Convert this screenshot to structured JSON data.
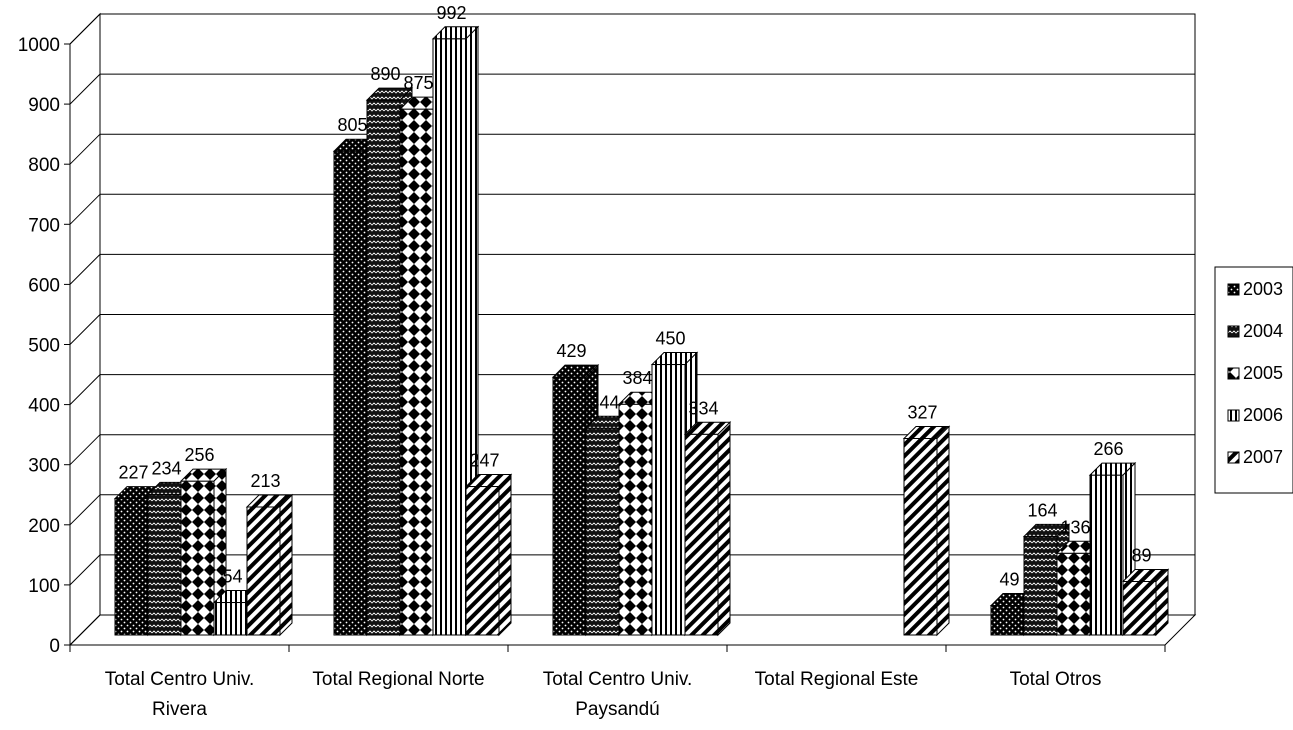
{
  "chart_data": {
    "type": "bar",
    "categories": [
      [
        "Total Centro Univ.",
        "Rivera"
      ],
      [
        "Total Regional Norte"
      ],
      [
        "Total Centro Univ.",
        "Paysandú"
      ],
      [
        "Total Regional Este"
      ],
      [
        "Total Otros"
      ]
    ],
    "series": [
      {
        "name": "2003",
        "values": [
          227,
          805,
          429,
          null,
          49
        ]
      },
      {
        "name": "2004",
        "values": [
          234,
          890,
          344,
          null,
          164
        ]
      },
      {
        "name": "2005",
        "values": [
          256,
          875,
          384,
          null,
          136
        ]
      },
      {
        "name": "2006",
        "values": [
          54,
          992,
          450,
          null,
          266
        ]
      },
      {
        "name": "2007",
        "values": [
          213,
          247,
          334,
          327,
          89
        ]
      }
    ],
    "ylim": [
      0,
      1000
    ],
    "yticks": [
      0,
      100,
      200,
      300,
      400,
      500,
      600,
      700,
      800,
      900,
      1000
    ],
    "grid": true,
    "legend": "right",
    "three_d": true,
    "fills": [
      "dots",
      "waves",
      "diamonds",
      "vertical-stripes",
      "diagonal-stripes"
    ]
  }
}
